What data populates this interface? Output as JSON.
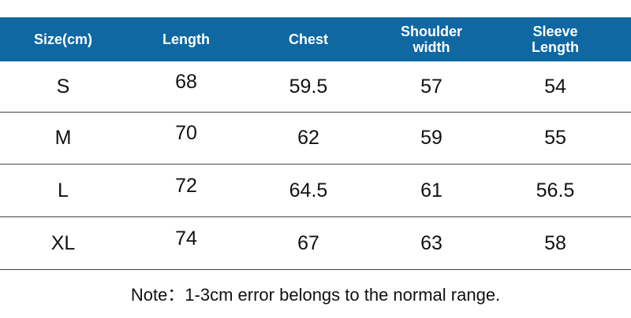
{
  "table": {
    "header": [
      "Size(cm)",
      "Length",
      "Chest",
      "Shoulder width",
      "Sleeve Length"
    ],
    "rows": [
      [
        "S",
        68,
        59.5,
        57,
        54
      ],
      [
        "M",
        70,
        62,
        59,
        55
      ],
      [
        "L",
        72,
        64.5,
        61,
        56.5
      ],
      [
        "XL",
        74,
        67,
        63,
        58
      ]
    ]
  },
  "note": "Note：1-3cm error belongs to the normal range."
}
